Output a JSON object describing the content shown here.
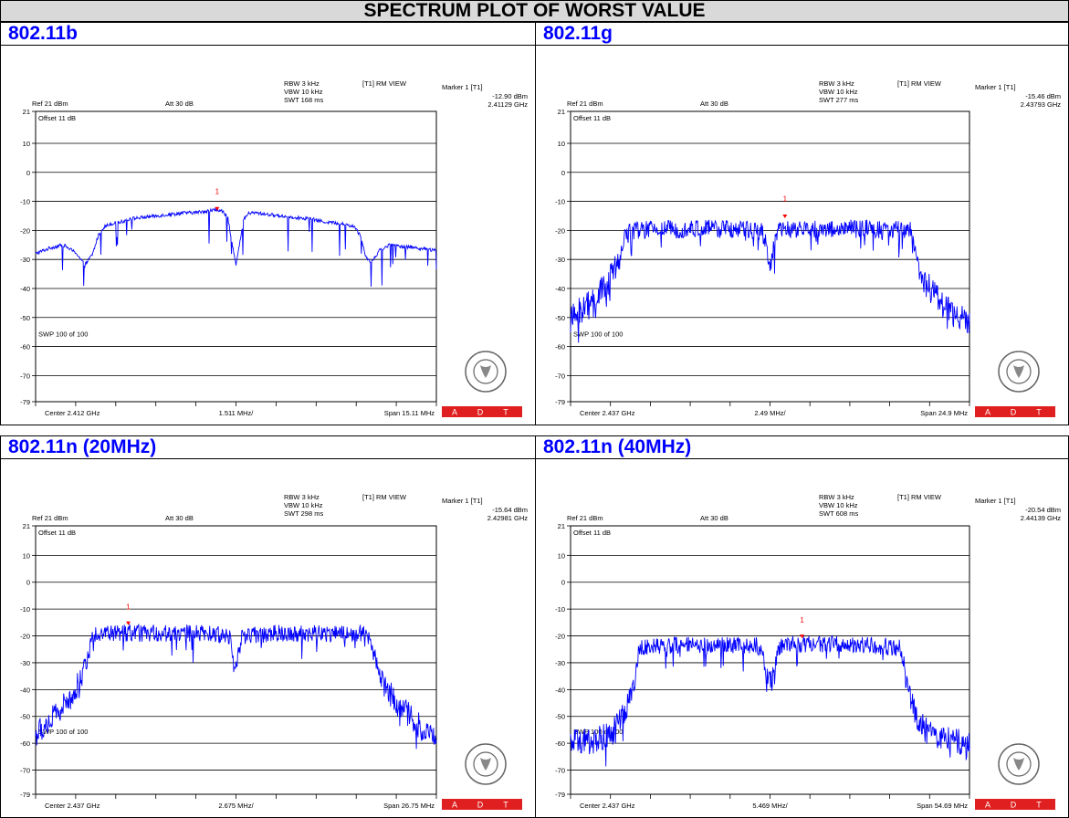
{
  "page_title": "SPECTRUM PLOT OF WORST VALUE",
  "common": {
    "ref": "Ref 21 dBm",
    "att": "Att  30 dB",
    "offset": "Offset 11 dB",
    "rbw": "RBW 3 kHz",
    "vbw": "VBW 10 kHz",
    "view": "[T1] RM VIEW",
    "marker_title": "Marker 1 [T1]",
    "sweep": "SWP 100 of 100",
    "marker_num": "1",
    "logo_letters": [
      "A",
      "D",
      "T"
    ],
    "logo_text": "BUREAU VERITAS 1828",
    "trace_color": "#0000ff",
    "marker_color": "#ff0000"
  },
  "chart_data": [
    {
      "type": "line",
      "title": "802.11b",
      "swt": "SWT 168 ms",
      "marker_level": "-12.90 dBm",
      "marker_freq": "2.41129 GHz",
      "center": "Center 2.412 GHz",
      "per_div": "1.511 MHz/",
      "span_label": "Span 15.11 MHz",
      "center_ghz": 2.412,
      "span_mhz": 15.11,
      "ylim": [
        -79,
        21
      ],
      "y_ticks": [
        "21",
        "10",
        "0",
        "-10",
        "-20",
        "-30",
        "-40",
        "-50",
        "-60",
        "-70",
        "-79"
      ],
      "marker": {
        "x_mhz": -0.71,
        "y_dbm": -12.9
      },
      "x_mhz": [
        -7.555,
        -7.0,
        -6.5,
        -6.0,
        -5.7,
        -5.4,
        -5.2,
        -5.0,
        -4.8,
        -4.6,
        -4.3,
        -4.0,
        -3.5,
        -3.0,
        -2.5,
        -2.0,
        -1.5,
        -1.0,
        -0.7,
        -0.5,
        -0.3,
        -0.15,
        0.0,
        0.15,
        0.3,
        0.5,
        0.8,
        1.2,
        1.7,
        2.2,
        2.8,
        3.3,
        3.8,
        4.2,
        4.5,
        4.7,
        4.9,
        5.1,
        5.4,
        5.8,
        6.3,
        6.8,
        7.2,
        7.555
      ],
      "y_dbm": [
        -28,
        -26,
        -25,
        -28,
        -32,
        -28,
        -22,
        -19,
        -18,
        -17.5,
        -17,
        -16,
        -15.5,
        -15,
        -14.5,
        -14,
        -13.8,
        -13.2,
        -12.9,
        -13.5,
        -16,
        -24,
        -32,
        -24,
        -16,
        -14,
        -14,
        -14.5,
        -15,
        -15.5,
        -16,
        -17,
        -17.5,
        -18,
        -19,
        -22,
        -29,
        -31,
        -27,
        -25,
        -25.5,
        -26,
        -26.5,
        -27
      ]
    },
    {
      "type": "line",
      "title": "802.11g",
      "swt": "SWT 277 ms",
      "marker_level": "-15.46 dBm",
      "marker_freq": "2.43793 GHz",
      "center": "Center 2.437 GHz",
      "per_div": "2.49 MHz/",
      "span_label": "Span 24.9 MHz",
      "center_ghz": 2.437,
      "span_mhz": 24.9,
      "ylim": [
        -79,
        21
      ],
      "y_ticks": [
        "21",
        "10",
        "0",
        "-10",
        "-20",
        "-30",
        "-40",
        "-50",
        "-60",
        "-70",
        "-79"
      ],
      "marker": {
        "x_mhz": 0.93,
        "y_dbm": -15.46
      },
      "x_mhz": [
        -12.45,
        -11.5,
        -10.5,
        -9.8,
        -9.4,
        -9.2,
        -9.0,
        -6.0,
        -3.0,
        -0.5,
        -0.2,
        0.0,
        0.2,
        0.5,
        3.0,
        6.0,
        8.8,
        9.0,
        9.2,
        9.6,
        10.3,
        11.2,
        12.45
      ],
      "y_dbm": [
        -51,
        -46,
        -41,
        -35,
        -30,
        -26,
        -20,
        -19.5,
        -19.5,
        -20,
        -26,
        -33,
        -26,
        -20,
        -19.5,
        -19.5,
        -20,
        -26,
        -31,
        -37,
        -42,
        -48,
        -52
      ]
    },
    {
      "type": "line",
      "title": "802.11n (20MHz)",
      "swt": "SWT 298 ms",
      "marker_level": "-15.64 dBm",
      "marker_freq": "2.42981 GHz",
      "center": "Center 2.437 GHz",
      "per_div": "2.675 MHz/",
      "span_label": "Span 26.75 MHz",
      "center_ghz": 2.437,
      "span_mhz": 26.75,
      "ylim": [
        -79,
        21
      ],
      "y_ticks": [
        "21",
        "10",
        "0",
        "-10",
        "-20",
        "-30",
        "-40",
        "-50",
        "-60",
        "-70",
        "-79"
      ],
      "marker": {
        "x_mhz": -7.19,
        "y_dbm": -15.64
      },
      "x_mhz": [
        -13.375,
        -12.3,
        -11.3,
        -10.6,
        -10.2,
        -9.9,
        -9.7,
        -9.4,
        -6.0,
        -2.5,
        -0.4,
        -0.1,
        0.1,
        0.4,
        3.0,
        6.0,
        8.5,
        9.0,
        9.4,
        9.9,
        10.6,
        11.6,
        12.5,
        13.375
      ],
      "y_dbm": [
        -57,
        -51,
        -45,
        -39,
        -33,
        -28,
        -21,
        -19,
        -19,
        -19,
        -20,
        -29,
        -29,
        -20,
        -19,
        -19,
        -19,
        -21,
        -30,
        -38,
        -44,
        -50,
        -55,
        -58
      ]
    },
    {
      "type": "line",
      "title": "802.11n (40MHz)",
      "swt": "SWT 608 ms",
      "marker_level": "-20.54 dBm",
      "marker_freq": "2.44139 GHz",
      "center": "Center 2.437 GHz",
      "per_div": "5.469 MHz/",
      "span_label": "Span 54.69 MHz",
      "center_ghz": 2.437,
      "span_mhz": 54.69,
      "ylim": [
        -79,
        21
      ],
      "y_ticks": [
        "21",
        "10",
        "0",
        "-10",
        "-20",
        "-30",
        "-40",
        "-50",
        "-60",
        "-70",
        "-79"
      ],
      "marker": {
        "x_mhz": 4.39,
        "y_dbm": -20.54
      },
      "x_mhz": [
        -27.345,
        -24.0,
        -22.0,
        -20.5,
        -19.5,
        -18.5,
        -18.0,
        -14.0,
        -8.0,
        -2.0,
        -1.0,
        -0.5,
        0.0,
        0.5,
        1.0,
        2.0,
        8.0,
        14.0,
        18.0,
        18.5,
        19.5,
        20.5,
        22.0,
        24.5,
        27.345
      ],
      "y_dbm": [
        -60,
        -59,
        -57,
        -52,
        -45,
        -38,
        -24,
        -23.5,
        -23.5,
        -23.5,
        -25,
        -36,
        -38,
        -36,
        -25,
        -23,
        -23,
        -23.5,
        -24.5,
        -35,
        -45,
        -52,
        -57,
        -59,
        -60
      ]
    }
  ]
}
